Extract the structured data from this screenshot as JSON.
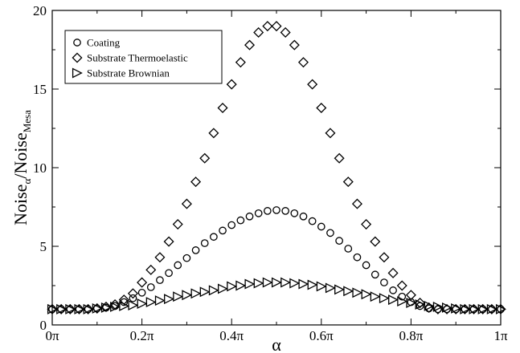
{
  "chart_data": {
    "type": "scatter",
    "title": "",
    "xlabel": "α",
    "ylabel": {
      "base": "Noise",
      "numerator_sub": "α",
      "slash": "/",
      "denominator": "Noise",
      "denominator_sub": "Mesa"
    },
    "xlim": [
      0,
      1
    ],
    "ylim": [
      0,
      20
    ],
    "x_ticks": [
      {
        "value": 0,
        "label": "0π"
      },
      {
        "value": 0.2,
        "label": "0.2π"
      },
      {
        "value": 0.4,
        "label": "0.4π"
      },
      {
        "value": 0.6,
        "label": "0.6π"
      },
      {
        "value": 0.8,
        "label": "0.8π"
      },
      {
        "value": 1,
        "label": "1π"
      }
    ],
    "y_ticks": [
      {
        "value": 0,
        "label": "0"
      },
      {
        "value": 5,
        "label": "5"
      },
      {
        "value": 10,
        "label": "10"
      },
      {
        "value": 15,
        "label": "15"
      },
      {
        "value": 20,
        "label": "20"
      }
    ],
    "grid": false,
    "legend_position": "top-left",
    "x": [
      0,
      0.02,
      0.04,
      0.06,
      0.08,
      0.1,
      0.12,
      0.14,
      0.16,
      0.18,
      0.2,
      0.22,
      0.24,
      0.26,
      0.28,
      0.3,
      0.32,
      0.34,
      0.36,
      0.38,
      0.4,
      0.42,
      0.44,
      0.46,
      0.48,
      0.5,
      0.52,
      0.54,
      0.56,
      0.58,
      0.6,
      0.62,
      0.64,
      0.66,
      0.68,
      0.7,
      0.72,
      0.74,
      0.76,
      0.78,
      0.8,
      0.82,
      0.84,
      0.86,
      0.88,
      0.9,
      0.92,
      0.94,
      0.96,
      0.98,
      1.0
    ],
    "series": [
      {
        "name": "Coating",
        "marker": "circle",
        "values": [
          1.0,
          1.0,
          1.0,
          1.0,
          1.0,
          1.05,
          1.1,
          1.2,
          1.45,
          1.7,
          2.05,
          2.4,
          2.85,
          3.3,
          3.8,
          4.25,
          4.75,
          5.2,
          5.6,
          6.0,
          6.35,
          6.65,
          6.9,
          7.1,
          7.25,
          7.3,
          7.25,
          7.1,
          6.9,
          6.6,
          6.25,
          5.85,
          5.35,
          4.85,
          4.3,
          3.8,
          3.2,
          2.7,
          2.2,
          1.8,
          1.45,
          1.2,
          1.05,
          1.0,
          1.0,
          1.0,
          1.0,
          1.0,
          1.0,
          1.0,
          1.0
        ]
      },
      {
        "name": "Substrate Thermoelastic",
        "marker": "diamond",
        "values": [
          1.0,
          1.0,
          1.0,
          1.0,
          1.0,
          1.05,
          1.15,
          1.3,
          1.6,
          2.0,
          2.7,
          3.5,
          4.3,
          5.3,
          6.4,
          7.7,
          9.1,
          10.6,
          12.2,
          13.8,
          15.3,
          16.7,
          17.8,
          18.6,
          19.0,
          19.0,
          18.6,
          17.8,
          16.7,
          15.3,
          13.8,
          12.2,
          10.6,
          9.1,
          7.7,
          6.4,
          5.3,
          4.3,
          3.3,
          2.5,
          1.9,
          1.4,
          1.1,
          1.0,
          1.0,
          1.0,
          1.0,
          1.0,
          1.0,
          1.0,
          1.0
        ]
      },
      {
        "name": "Substrate Brownian",
        "marker": "triangle-right",
        "values": [
          1.0,
          1.0,
          1.0,
          1.0,
          1.0,
          1.05,
          1.1,
          1.15,
          1.2,
          1.25,
          1.35,
          1.45,
          1.55,
          1.65,
          1.8,
          1.9,
          2.0,
          2.1,
          2.2,
          2.3,
          2.45,
          2.5,
          2.6,
          2.65,
          2.7,
          2.7,
          2.7,
          2.65,
          2.6,
          2.55,
          2.45,
          2.35,
          2.25,
          2.15,
          2.05,
          1.95,
          1.8,
          1.7,
          1.6,
          1.5,
          1.4,
          1.3,
          1.2,
          1.15,
          1.1,
          1.05,
          1.0,
          1.0,
          1.0,
          1.0,
          1.0
        ]
      }
    ]
  }
}
